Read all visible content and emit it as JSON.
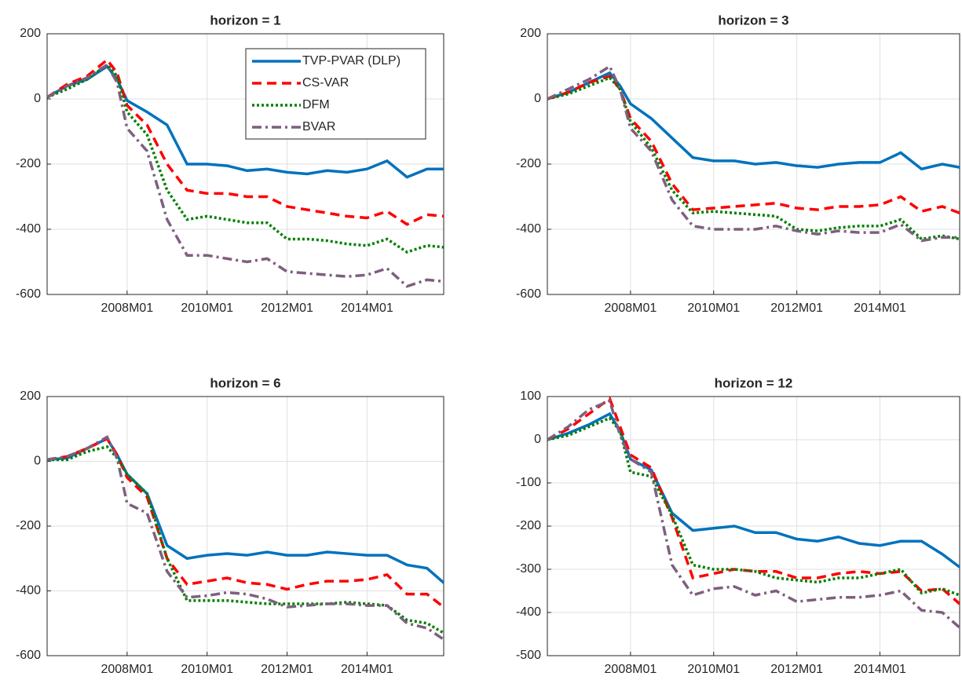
{
  "chart_data": [
    {
      "type": "line",
      "title": "horizon = 1",
      "grid": true,
      "legend": "top-right",
      "x": [
        "2006M01",
        "2006M07",
        "2007M01",
        "2007M07",
        "2007M10",
        "2008M01",
        "2008M07",
        "2009M01",
        "2009M07",
        "2010M01",
        "2010M07",
        "2011M01",
        "2011M07",
        "2012M01",
        "2012M07",
        "2013M01",
        "2013M07",
        "2014M01",
        "2014M07",
        "2015M01",
        "2015M07",
        "2015M12"
      ],
      "xlim": [
        "2006M01",
        "2015M12"
      ],
      "xticks": [
        "2008M01",
        "2010M01",
        "2012M01",
        "2014M01"
      ],
      "ylim": [
        -600,
        200
      ],
      "yticks": [
        -600,
        -400,
        -200,
        0,
        200
      ],
      "series": [
        {
          "name": "TVP-PVAR (DLP)",
          "color": "#0072bd",
          "style": "solid",
          "values": [
            5,
            40,
            60,
            100,
            60,
            -5,
            -40,
            -80,
            -200,
            -200,
            -205,
            -220,
            -215,
            -225,
            -230,
            -220,
            -225,
            -215,
            -190,
            -240,
            -215,
            -215
          ]
        },
        {
          "name": "CS-VAR",
          "color": "#ff0000",
          "style": "dashed",
          "values": [
            5,
            45,
            70,
            120,
            80,
            -20,
            -80,
            -200,
            -280,
            -290,
            -290,
            -300,
            -300,
            -330,
            -340,
            -350,
            -360,
            -365,
            -345,
            -385,
            -355,
            -360
          ]
        },
        {
          "name": "DFM",
          "color": "#008000",
          "style": "dotted",
          "values": [
            5,
            30,
            60,
            105,
            70,
            -40,
            -110,
            -280,
            -370,
            -360,
            -370,
            -380,
            -380,
            -430,
            -430,
            -435,
            -445,
            -450,
            -430,
            -470,
            -450,
            -455
          ]
        },
        {
          "name": "BVAR",
          "color": "#7e5f7e",
          "style": "dashdot",
          "values": [
            5,
            40,
            65,
            105,
            50,
            -90,
            -160,
            -370,
            -480,
            -480,
            -490,
            -500,
            -490,
            -530,
            -535,
            -540,
            -545,
            -540,
            -520,
            -575,
            -555,
            -560
          ]
        }
      ]
    },
    {
      "type": "line",
      "title": "horizon = 3",
      "grid": true,
      "x": [
        "2006M01",
        "2006M07",
        "2007M01",
        "2007M07",
        "2007M10",
        "2008M01",
        "2008M07",
        "2009M01",
        "2009M07",
        "2010M01",
        "2010M07",
        "2011M01",
        "2011M07",
        "2012M01",
        "2012M07",
        "2013M01",
        "2013M07",
        "2014M01",
        "2014M07",
        "2015M01",
        "2015M07",
        "2015M12"
      ],
      "xlim": [
        "2006M01",
        "2015M12"
      ],
      "xticks": [
        "2008M01",
        "2010M01",
        "2012M01",
        "2014M01"
      ],
      "ylim": [
        -600,
        200
      ],
      "yticks": [
        -600,
        -400,
        -200,
        0,
        200
      ],
      "series": [
        {
          "color": "#0072bd",
          "style": "solid",
          "values": [
            0,
            20,
            50,
            80,
            40,
            -15,
            -60,
            -120,
            -180,
            -190,
            -190,
            -200,
            -195,
            -205,
            -210,
            -200,
            -195,
            -195,
            -165,
            -215,
            -200,
            -210
          ]
        },
        {
          "color": "#ff0000",
          "style": "dashed",
          "values": [
            0,
            20,
            50,
            70,
            30,
            -60,
            -130,
            -260,
            -340,
            -335,
            -330,
            -325,
            -320,
            -335,
            -340,
            -330,
            -330,
            -325,
            -300,
            -345,
            -330,
            -350
          ]
        },
        {
          "color": "#008000",
          "style": "dotted",
          "values": [
            0,
            15,
            40,
            65,
            30,
            -70,
            -150,
            -280,
            -350,
            -345,
            -350,
            -355,
            -360,
            -400,
            -405,
            -395,
            -390,
            -390,
            -370,
            -430,
            -420,
            -430
          ]
        },
        {
          "color": "#7e5f7e",
          "style": "dashdot",
          "values": [
            0,
            30,
            60,
            100,
            30,
            -90,
            -160,
            -310,
            -390,
            -400,
            -400,
            -400,
            -390,
            -405,
            -415,
            -405,
            -410,
            -410,
            -385,
            -435,
            -425,
            -425
          ]
        }
      ]
    },
    {
      "type": "line",
      "title": "horizon = 6",
      "grid": true,
      "x": [
        "2006M01",
        "2006M07",
        "2007M01",
        "2007M07",
        "2007M10",
        "2008M01",
        "2008M07",
        "2009M01",
        "2009M07",
        "2010M01",
        "2010M07",
        "2011M01",
        "2011M07",
        "2012M01",
        "2012M07",
        "2013M01",
        "2013M07",
        "2014M01",
        "2014M07",
        "2015M01",
        "2015M07",
        "2015M12"
      ],
      "xlim": [
        "2006M01",
        "2015M12"
      ],
      "xticks": [
        "2008M01",
        "2010M01",
        "2012M01",
        "2014M01"
      ],
      "ylim": [
        -600,
        200
      ],
      "yticks": [
        -600,
        -400,
        -200,
        0,
        200
      ],
      "series": [
        {
          "color": "#0072bd",
          "style": "solid",
          "values": [
            5,
            10,
            40,
            70,
            20,
            -40,
            -100,
            -260,
            -300,
            -290,
            -285,
            -290,
            -280,
            -290,
            -290,
            -280,
            -285,
            -290,
            -290,
            -320,
            -330,
            -375
          ]
        },
        {
          "color": "#ff0000",
          "style": "dashed",
          "values": [
            5,
            15,
            40,
            70,
            20,
            -50,
            -110,
            -300,
            -380,
            -370,
            -360,
            -375,
            -380,
            -395,
            -380,
            -370,
            -370,
            -365,
            -350,
            -410,
            -410,
            -450
          ]
        },
        {
          "color": "#008000",
          "style": "dotted",
          "values": [
            5,
            5,
            30,
            45,
            10,
            -40,
            -100,
            -300,
            -430,
            -430,
            -430,
            -435,
            -440,
            -440,
            -440,
            -440,
            -435,
            -440,
            -445,
            -490,
            -500,
            -530
          ]
        },
        {
          "color": "#7e5f7e",
          "style": "dashdot",
          "values": [
            5,
            15,
            40,
            75,
            10,
            -130,
            -160,
            -340,
            -420,
            -415,
            -405,
            -410,
            -425,
            -450,
            -445,
            -440,
            -440,
            -445,
            -445,
            -500,
            -515,
            -550
          ]
        }
      ]
    },
    {
      "type": "line",
      "title": "horizon = 12",
      "grid": true,
      "x": [
        "2006M01",
        "2006M07",
        "2007M01",
        "2007M07",
        "2007M10",
        "2008M01",
        "2008M07",
        "2009M01",
        "2009M07",
        "2010M01",
        "2010M07",
        "2011M01",
        "2011M07",
        "2012M01",
        "2012M07",
        "2013M01",
        "2013M07",
        "2014M01",
        "2014M07",
        "2015M01",
        "2015M07",
        "2015M12"
      ],
      "xlim": [
        "2006M01",
        "2015M12"
      ],
      "xticks": [
        "2008M01",
        "2010M01",
        "2012M01",
        "2014M01"
      ],
      "ylim": [
        -500,
        100
      ],
      "yticks": [
        -500,
        -400,
        -300,
        -200,
        -100,
        0,
        100
      ],
      "series": [
        {
          "color": "#0072bd",
          "style": "solid",
          "values": [
            0,
            15,
            35,
            60,
            20,
            -45,
            -70,
            -170,
            -210,
            -205,
            -200,
            -215,
            -215,
            -230,
            -235,
            -225,
            -240,
            -245,
            -235,
            -235,
            -265,
            -295
          ]
        },
        {
          "color": "#ff0000",
          "style": "dashed",
          "values": [
            0,
            25,
            60,
            95,
            30,
            -35,
            -65,
            -180,
            -320,
            -310,
            -300,
            -305,
            -305,
            -320,
            -320,
            -310,
            -305,
            -310,
            -305,
            -350,
            -345,
            -380
          ]
        },
        {
          "color": "#008000",
          "style": "dotted",
          "values": [
            0,
            10,
            30,
            50,
            20,
            -75,
            -85,
            -175,
            -290,
            -300,
            -300,
            -305,
            -320,
            -325,
            -330,
            -320,
            -320,
            -310,
            -300,
            -355,
            -345,
            -360
          ]
        },
        {
          "color": "#7e5f7e",
          "style": "dashdot",
          "values": [
            0,
            30,
            70,
            90,
            10,
            -45,
            -75,
            -290,
            -360,
            -345,
            -340,
            -360,
            -350,
            -375,
            -370,
            -365,
            -365,
            -360,
            -350,
            -395,
            -400,
            -435
          ]
        }
      ]
    }
  ]
}
